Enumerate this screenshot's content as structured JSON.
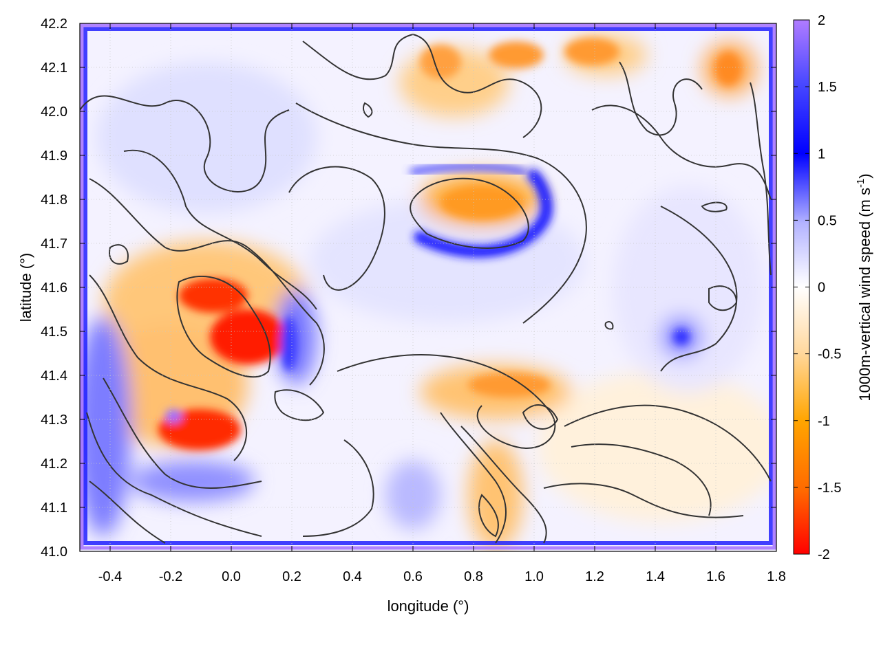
{
  "chart_data": {
    "type": "heatmap",
    "title": "",
    "xlabel": "longitude (°)",
    "ylabel": "latitude (°)",
    "xlim": [
      -0.5,
      1.8
    ],
    "ylim": [
      41.0,
      42.2
    ],
    "x_ticks": [
      "-0.4",
      "-0.2",
      "0.0",
      "0.2",
      "0.4",
      "0.6",
      "0.8",
      "1.0",
      "1.2",
      "1.4",
      "1.6",
      "1.8"
    ],
    "y_ticks": [
      "41.0",
      "41.1",
      "41.2",
      "41.3",
      "41.4",
      "41.5",
      "41.6",
      "41.7",
      "41.8",
      "41.9",
      "42.0",
      "42.1",
      "42.2"
    ],
    "grid": true,
    "colorbar": {
      "label_main": "1000m-vertical wind speed (m s",
      "label_sup": "-1",
      "label_end": ")",
      "range": [
        -2,
        2
      ],
      "ticks": [
        "2",
        "1.5",
        "1",
        "0.5",
        "0",
        "-0.5",
        "-1",
        "-1.5",
        "-2"
      ],
      "colors": [
        "#ff0000",
        "#ff6a00",
        "#ffa500",
        "#ffd9a0",
        "#ffffff",
        "#b3b3ff",
        "#0000ff",
        "#4040ff",
        "#b07cff"
      ]
    },
    "contours": "terrain elevation contours (black lines)",
    "features": [
      {
        "kind": "updraft",
        "lon": 0.07,
        "lat": 41.5,
        "value": -1.9
      },
      {
        "kind": "updraft",
        "lon": -0.05,
        "lat": 41.58,
        "value": -1.6
      },
      {
        "kind": "updraft",
        "lon": -0.1,
        "lat": 41.27,
        "value": -1.7
      },
      {
        "kind": "updraft",
        "lon": 0.85,
        "lat": 41.8,
        "value": -0.9
      },
      {
        "kind": "updraft",
        "lon": 0.9,
        "lat": 41.38,
        "value": -0.8
      },
      {
        "kind": "updraft",
        "lon": 0.85,
        "lat": 41.15,
        "value": -0.7
      },
      {
        "kind": "updraft",
        "lon": 0.95,
        "lat": 42.13,
        "value": -0.9
      },
      {
        "kind": "updraft",
        "lon": 1.2,
        "lat": 42.13,
        "value": -0.9
      },
      {
        "kind": "updraft",
        "lon": 1.65,
        "lat": 42.1,
        "value": -1.0
      },
      {
        "kind": "updraft",
        "lon": 0.7,
        "lat": 42.12,
        "value": -0.8
      },
      {
        "kind": "downdraft",
        "lon": 0.9,
        "lat": 41.72,
        "value": 1.2
      },
      {
        "kind": "downdraft",
        "lon": -0.43,
        "lat": 41.3,
        "value": 1.0
      },
      {
        "kind": "downdraft",
        "lon": 0.2,
        "lat": 41.48,
        "value": 1.0
      },
      {
        "kind": "downdraft",
        "lon": 1.48,
        "lat": 41.48,
        "value": 0.9
      },
      {
        "kind": "downdraft",
        "lon": 0.2,
        "lat": 41.85,
        "value": 0.6
      }
    ]
  }
}
